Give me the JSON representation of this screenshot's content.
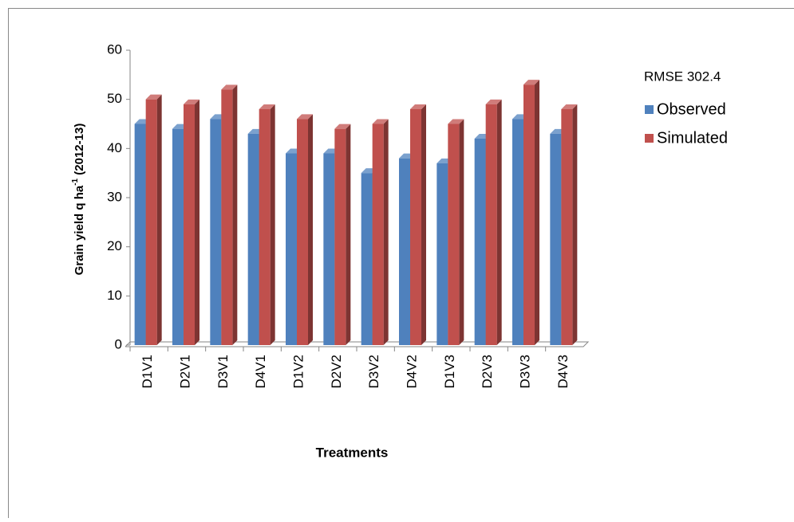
{
  "chart_data": {
    "type": "bar",
    "y_label": [
      "Grain yield q ha",
      "-1",
      " (2012-13)"
    ],
    "x_label": "Treatments",
    "annotation": "RMSE  302.4",
    "categories": [
      "D1V1",
      "D2V1",
      "D3V1",
      "D4V1",
      "D1V2",
      "D2V2",
      "D3V2",
      "D4V2",
      "D1V3",
      "D2V3",
      "D3V3",
      "D4V3"
    ],
    "series": [
      {
        "name": "Observed",
        "color": "#4f81bd",
        "values": [
          45,
          44,
          46,
          43,
          39,
          39,
          35,
          38,
          37,
          42,
          46,
          43
        ]
      },
      {
        "name": "Simulated",
        "color": "#c0504d",
        "values": [
          50,
          49,
          52,
          48,
          46,
          44,
          45,
          48,
          45,
          49,
          53,
          48
        ]
      }
    ],
    "ylim": [
      0,
      60
    ],
    "yticks": [
      0,
      10,
      20,
      30,
      40,
      50,
      60
    ],
    "grid": false,
    "legend": "right"
  }
}
